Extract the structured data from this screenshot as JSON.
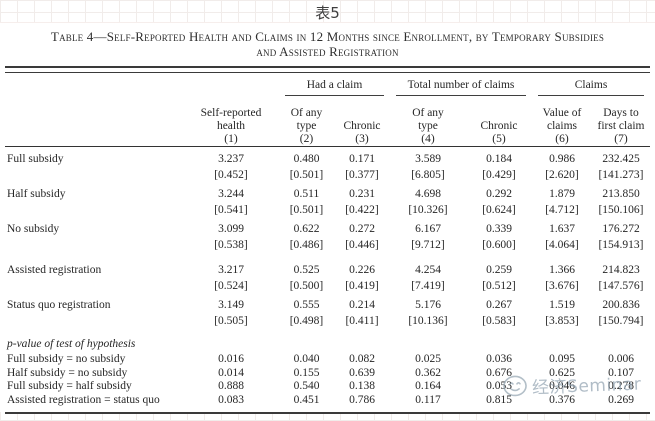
{
  "page": {
    "sheet_label": "表5"
  },
  "watermark": {
    "text": "经济Seminar",
    "logo": "doodle-face-icon",
    "color": "#93a4b1"
  },
  "table": {
    "title_line1": "Table 4—Self-Reported Health and Claims in 12 Months since Enrollment, by Temporary Subsidies",
    "title_line2": "and Assisted Registration",
    "group_headers": [
      {
        "label": "Had a claim",
        "spans": [
          "(2)",
          "(3)"
        ]
      },
      {
        "label": "Total number of claims",
        "spans": [
          "(4)",
          "(5)"
        ]
      },
      {
        "label": "Claims",
        "spans": [
          "(6)",
          "(7)"
        ]
      }
    ],
    "columns": [
      {
        "title": "Self-reported\nhealth",
        "number": "(1)"
      },
      {
        "title": "Of any\ntype",
        "number": "(2)"
      },
      {
        "title": "Chronic",
        "number": "(3)"
      },
      {
        "title": "Of any\ntype",
        "number": "(4)"
      },
      {
        "title": "Chronic",
        "number": "(5)"
      },
      {
        "title": "Value of\nclaims",
        "number": "(6)"
      },
      {
        "title": "Days to\nfirst claim",
        "number": "(7)"
      }
    ],
    "rows": [
      {
        "label": "Full subsidy",
        "values": [
          "3.237",
          "0.480",
          "0.171",
          "3.589",
          "0.184",
          "0.986",
          "232.425"
        ],
        "brackets": [
          "[0.452]",
          "[0.501]",
          "[0.377]",
          "[6.805]",
          "[0.429]",
          "[2.620]",
          "[141.273]"
        ],
        "gap_after": false
      },
      {
        "label": "Half subsidy",
        "values": [
          "3.244",
          "0.511",
          "0.231",
          "4.698",
          "0.292",
          "1.879",
          "213.850"
        ],
        "brackets": [
          "[0.541]",
          "[0.501]",
          "[0.422]",
          "[10.326]",
          "[0.624]",
          "[4.712]",
          "[150.106]"
        ],
        "gap_after": false
      },
      {
        "label": "No subsidy",
        "values": [
          "3.099",
          "0.622",
          "0.272",
          "6.167",
          "0.339",
          "1.637",
          "176.272"
        ],
        "brackets": [
          "[0.538]",
          "[0.486]",
          "[0.446]",
          "[9.712]",
          "[0.600]",
          "[4.064]",
          "[154.913]"
        ],
        "gap_after": true
      },
      {
        "label": "Assisted registration",
        "values": [
          "3.217",
          "0.525",
          "0.226",
          "4.254",
          "0.259",
          "1.366",
          "214.823"
        ],
        "brackets": [
          "[0.524]",
          "[0.500]",
          "[0.419]",
          "[7.419]",
          "[0.512]",
          "[3.676]",
          "[147.576]"
        ],
        "gap_after": false
      },
      {
        "label": "Status quo registration",
        "values": [
          "3.149",
          "0.555",
          "0.214",
          "5.176",
          "0.267",
          "1.519",
          "200.836"
        ],
        "brackets": [
          "[0.505]",
          "[0.498]",
          "[0.411]",
          "[10.136]",
          "[0.583]",
          "[3.853]",
          "[150.794]"
        ],
        "gap_after": false
      }
    ],
    "pvalue": {
      "heading": "p-value of test of hypothesis",
      "rows": [
        {
          "label": "Full subsidy = no subsidy",
          "values": [
            "0.016",
            "0.040",
            "0.082",
            "0.025",
            "0.036",
            "0.095",
            "0.006"
          ]
        },
        {
          "label": "Half subsidy = no subsidy",
          "values": [
            "0.014",
            "0.155",
            "0.639",
            "0.362",
            "0.676",
            "0.625",
            "0.107"
          ]
        },
        {
          "label": "Full subsidy = half subsidy",
          "values": [
            "0.888",
            "0.540",
            "0.138",
            "0.164",
            "0.053",
            "0.046",
            "0.278"
          ]
        },
        {
          "label": "Assisted registration = status quo",
          "values": [
            "0.083",
            "0.451",
            "0.786",
            "0.117",
            "0.815",
            "0.376",
            "0.269"
          ]
        }
      ]
    }
  }
}
